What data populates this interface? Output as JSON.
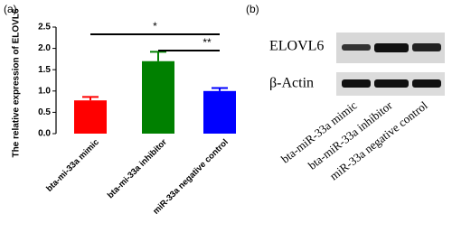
{
  "chart_data": {
    "type": "bar",
    "panel_label": "(a)",
    "y_label": "The relative expression of ELOVL6",
    "categories": [
      "bta-mi-33a mimic",
      "bta-mi-33a inhibitor",
      "miR-33a negative control"
    ],
    "values": [
      0.78,
      1.7,
      1.0
    ],
    "errors": [
      0.08,
      0.22,
      0.07
    ],
    "colors": [
      "#ff0000",
      "#008000",
      "#0000ff"
    ],
    "ylim": [
      0,
      2.5
    ],
    "yticks": [
      {
        "value": 0,
        "label": "0.0"
      },
      0.5,
      {
        "value": 1,
        "label": "1.0"
      },
      1.5,
      {
        "value": 2,
        "label": "2.0"
      },
      2.5
    ],
    "annotations": [
      "*",
      "**"
    ]
  },
  "blot": {
    "panel_label": "(b)",
    "rows": [
      "ELOVL6",
      "β-Actin"
    ],
    "lanes": [
      "bta-miR-33a mimic",
      "bta-miR-33a inhibitor",
      "miR-33a negative control"
    ]
  }
}
